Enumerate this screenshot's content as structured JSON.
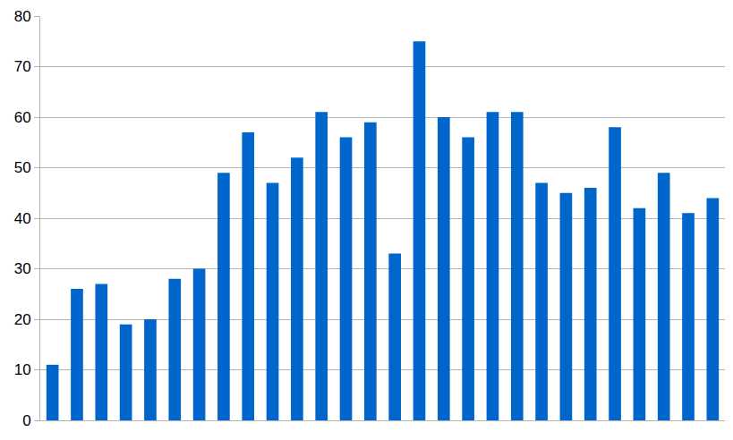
{
  "chart_data": {
    "type": "bar",
    "categories": [
      null,
      null,
      null,
      null,
      null,
      null,
      null,
      null,
      null,
      null,
      null,
      null,
      null,
      null,
      null,
      null,
      null,
      null,
      null,
      null,
      null,
      null,
      null,
      null,
      null,
      null,
      null,
      null
    ],
    "values": [
      11,
      26,
      27,
      19,
      20,
      28,
      30,
      49,
      57,
      47,
      52,
      61,
      56,
      59,
      33,
      75,
      60,
      56,
      61,
      61,
      47,
      45,
      46,
      58,
      42,
      49,
      41,
      44
    ],
    "color": "#0066cc",
    "ylim": [
      0,
      80
    ],
    "yticks": [
      0,
      10,
      20,
      30,
      40,
      50,
      60,
      70,
      80
    ],
    "grid": true,
    "tick_labels": "y"
  }
}
